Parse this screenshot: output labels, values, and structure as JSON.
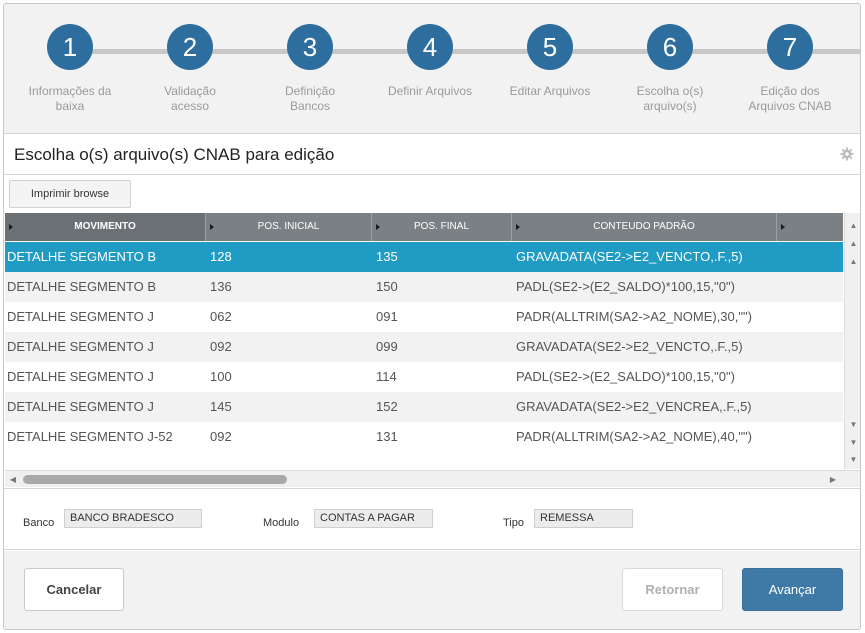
{
  "stepper": {
    "steps": [
      {
        "number": "1",
        "label_line1": "Informações da",
        "label_line2": "baixa",
        "done": true
      },
      {
        "number": "2",
        "label_line1": "Validação",
        "label_line2": "acesso",
        "done": true
      },
      {
        "number": "3",
        "label_line1": "Definição",
        "label_line2": "Bancos",
        "done": true
      },
      {
        "number": "4",
        "label_line1": "Definir Arquivos",
        "label_line2": "",
        "done": true
      },
      {
        "number": "5",
        "label_line1": "Editar Arquivos",
        "label_line2": "",
        "done": true
      },
      {
        "number": "6",
        "label_line1": "Escolha o(s)",
        "label_line2": "arquivo(s)",
        "done": true
      },
      {
        "number": "7",
        "label_line1": "Edição dos",
        "label_line2": "Arquivos CNAB",
        "done": false
      }
    ],
    "colors": {
      "circle": "#2e6e9e",
      "check": "#7cb342"
    }
  },
  "page": {
    "title": "Escolha o(s) arquivo(s) CNAB para edição",
    "print_button": "Imprimir browse"
  },
  "grid": {
    "columns": [
      "MOVIMENTO",
      "POS. INICIAL",
      "POS. FINAL",
      "CONTEUDO PADRÃO"
    ],
    "rows": [
      {
        "movimento": "DETALHE SEGMENTO B",
        "pos_inicial": "128",
        "pos_final": "135",
        "conteudo": "GRAVADATA(SE2->E2_VENCTO,.F.,5)"
      },
      {
        "movimento": "DETALHE SEGMENTO B",
        "pos_inicial": "136",
        "pos_final": "150",
        "conteudo": "PADL(SE2->(E2_SALDO)*100,15,\"0\")"
      },
      {
        "movimento": "DETALHE SEGMENTO J",
        "pos_inicial": "062",
        "pos_final": "091",
        "conteudo": "PADR(ALLTRIM(SA2->A2_NOME),30,\"\")"
      },
      {
        "movimento": "DETALHE SEGMENTO J",
        "pos_inicial": "092",
        "pos_final": "099",
        "conteudo": "GRAVADATA(SE2->E2_VENCTO,.F.,5)"
      },
      {
        "movimento": "DETALHE SEGMENTO J",
        "pos_inicial": "100",
        "pos_final": "114",
        "conteudo": "PADL(SE2->(E2_SALDO)*100,15,\"0\")"
      },
      {
        "movimento": "DETALHE SEGMENTO J",
        "pos_inicial": "145",
        "pos_final": "152",
        "conteudo": "GRAVADATA(SE2->E2_VENCREA,.F.,5)"
      },
      {
        "movimento": "DETALHE SEGMENTO J-52",
        "pos_inicial": "092",
        "pos_final": "131",
        "conteudo": "PADR(ALLTRIM(SA2->A2_NOME),40,\"\")"
      }
    ],
    "selected_row": 0,
    "selected_color": "#1f9bc4"
  },
  "fields": {
    "banco_label": "Banco",
    "banco_value": "BANCO BRADESCO",
    "modulo_label": "Modulo",
    "modulo_value": "CONTAS A PAGAR",
    "tipo_label": "Tipo",
    "tipo_value": "REMESSA"
  },
  "footer": {
    "cancel": "Cancelar",
    "back": "Retornar",
    "next": "Avançar",
    "next_color": "#3f7aa7"
  }
}
